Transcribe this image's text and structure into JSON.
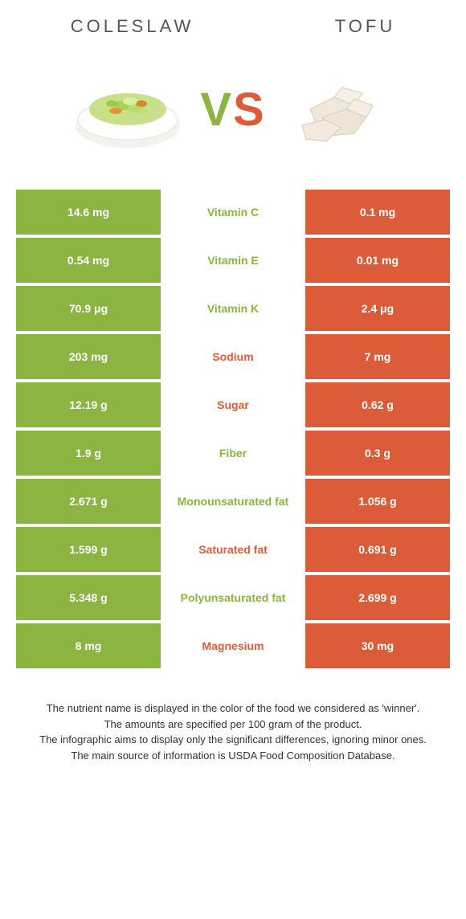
{
  "food_left": {
    "title": "COLESLAW",
    "color": "#8bb441"
  },
  "food_right": {
    "title": "TOFU",
    "color": "#dc5c3a"
  },
  "vs": {
    "v": "V",
    "s": "S"
  },
  "colors": {
    "green": "#8bb441",
    "orange": "#dc5c3a",
    "white": "#ffffff"
  },
  "rows": [
    {
      "left": "14.6 mg",
      "label": "Vitamin C",
      "right": "0.1 mg",
      "winner": "left"
    },
    {
      "left": "0.54 mg",
      "label": "Vitamin E",
      "right": "0.01 mg",
      "winner": "left"
    },
    {
      "left": "70.9 μg",
      "label": "Vitamin K",
      "right": "2.4 μg",
      "winner": "left"
    },
    {
      "left": "203 mg",
      "label": "Sodium",
      "right": "7 mg",
      "winner": "right"
    },
    {
      "left": "12.19 g",
      "label": "Sugar",
      "right": "0.62 g",
      "winner": "right"
    },
    {
      "left": "1.9 g",
      "label": "Fiber",
      "right": "0.3 g",
      "winner": "left"
    },
    {
      "left": "2.671 g",
      "label": "Monounsaturated fat",
      "right": "1.056 g",
      "winner": "left"
    },
    {
      "left": "1.599 g",
      "label": "Saturated fat",
      "right": "0.691 g",
      "winner": "right"
    },
    {
      "left": "5.348 g",
      "label": "Polyunsaturated fat",
      "right": "2.699 g",
      "winner": "left"
    },
    {
      "left": "8 mg",
      "label": "Magnesium",
      "right": "30 mg",
      "winner": "right"
    }
  ],
  "footer": {
    "line1": "The nutrient name is displayed in the color of the food we considered as 'winner'.",
    "line2": "The amounts are specified per 100 gram of the product.",
    "line3": "The infographic aims to display only the significant differences, ignoring minor ones.",
    "line4": "The main source of information is USDA Food Composition Database."
  }
}
